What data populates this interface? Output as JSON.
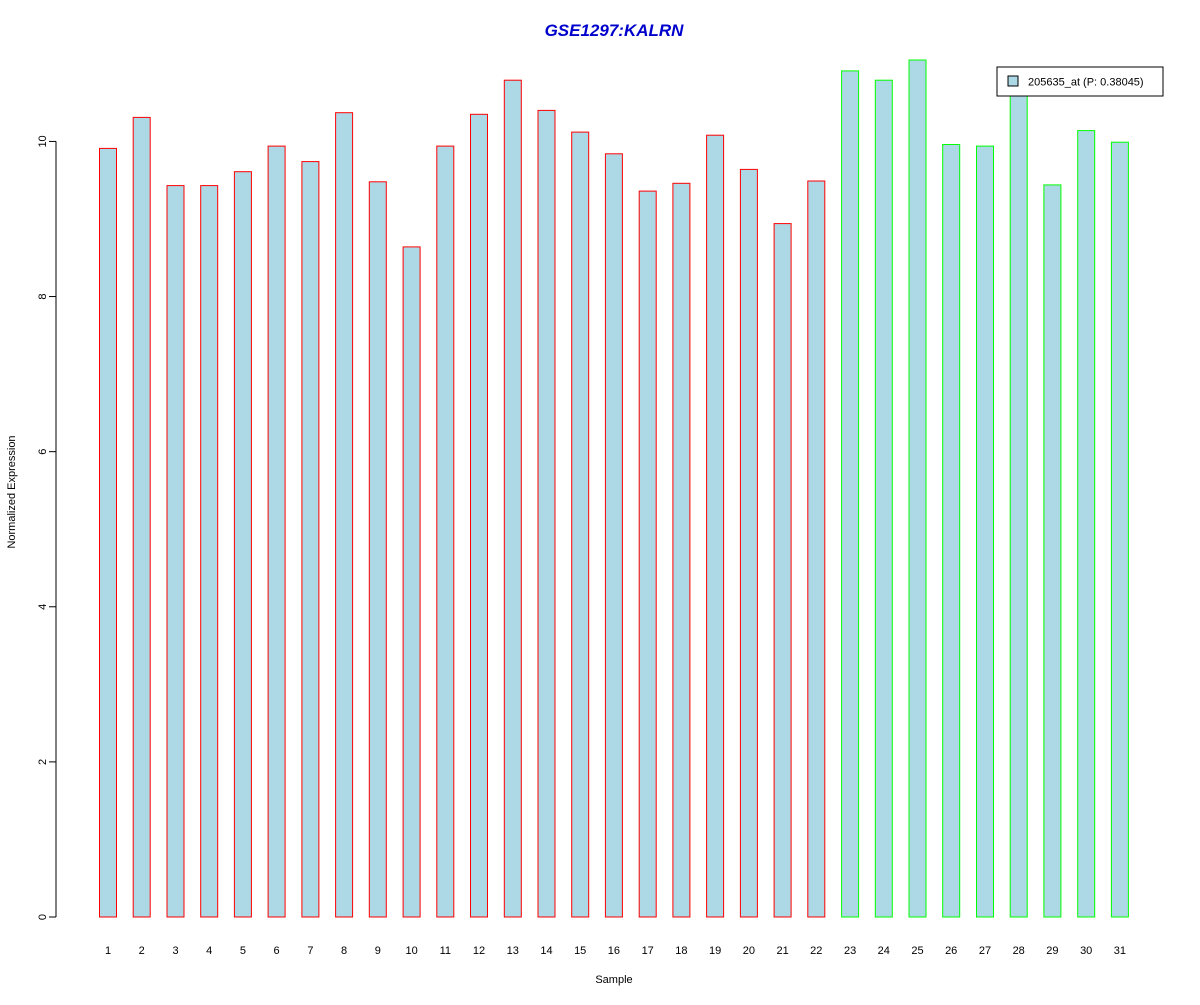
{
  "chart_data": {
    "type": "bar",
    "title": "GSE1297:KALRN",
    "xlabel": "Sample",
    "ylabel": "Normalized Expression",
    "ylim": [
      0,
      11.05
    ],
    "yticks": [
      0,
      2,
      4,
      6,
      8,
      10
    ],
    "grid": false,
    "legend": {
      "placement": "top-right",
      "entries": [
        "205635_at (P: 0.38045)"
      ]
    },
    "categories": [
      "1",
      "2",
      "3",
      "4",
      "5",
      "6",
      "7",
      "8",
      "9",
      "10",
      "11",
      "12",
      "13",
      "14",
      "15",
      "16",
      "17",
      "18",
      "19",
      "20",
      "21",
      "22",
      "23",
      "24",
      "25",
      "26",
      "27",
      "28",
      "29",
      "30",
      "31"
    ],
    "series": [
      {
        "name": "205635_at (P: 0.38045)",
        "values": [
          9.91,
          10.31,
          9.43,
          9.43,
          9.61,
          9.94,
          9.74,
          10.37,
          9.48,
          8.64,
          9.94,
          10.35,
          10.79,
          10.4,
          10.12,
          9.84,
          9.36,
          9.46,
          10.08,
          9.64,
          8.94,
          9.49,
          10.91,
          10.79,
          11.05,
          9.96,
          9.94,
          10.62,
          9.44,
          10.14,
          9.99
        ]
      }
    ],
    "bar_fill": "#add8e6",
    "group_colors": [
      "#ff0000",
      "#00ff00"
    ],
    "bar_groups": [
      0,
      0,
      0,
      0,
      0,
      0,
      0,
      0,
      0,
      0,
      0,
      0,
      0,
      0,
      0,
      0,
      0,
      0,
      0,
      0,
      0,
      0,
      1,
      1,
      1,
      1,
      1,
      1,
      1,
      1,
      1
    ],
    "title_color": "#0000cd"
  }
}
